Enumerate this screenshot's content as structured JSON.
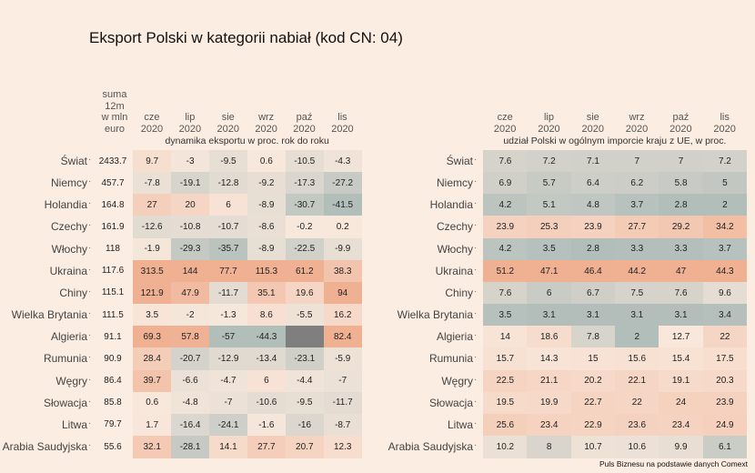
{
  "title": "Eksport Polski w kategorii nabiał (kod CN: 04)",
  "footer": "Puls Biznesu na podstawie danych Comext",
  "left": {
    "total_header": [
      "suma",
      "12m",
      "w mln",
      "euro"
    ],
    "columns": [
      [
        "cze",
        "2020"
      ],
      [
        "lip",
        "2020"
      ],
      [
        "sie",
        "2020"
      ],
      [
        "wrz",
        "2020"
      ],
      [
        "paź",
        "2020"
      ],
      [
        "lis",
        "2020"
      ]
    ],
    "subtitle": "dynamika eksportu w proc. rok do roku",
    "rows": [
      {
        "name": "Świat",
        "total": 2433.7,
        "values": [
          9.7,
          -3,
          -9.5,
          0.6,
          -10.5,
          -4.3
        ]
      },
      {
        "name": "Niemcy",
        "total": 457.7,
        "values": [
          -7.8,
          -19.1,
          -12.8,
          -9.2,
          -17.3,
          -27.2
        ]
      },
      {
        "name": "Holandia",
        "total": 164.8,
        "values": [
          27,
          20,
          6,
          -8.9,
          -30.7,
          -41.5
        ]
      },
      {
        "name": "Czechy",
        "total": 161.9,
        "values": [
          -12.6,
          -10.8,
          -10.7,
          -8.6,
          -0.2,
          0.2
        ]
      },
      {
        "name": "Włochy",
        "total": 118,
        "values": [
          -1.9,
          -29.3,
          -35.7,
          -8.9,
          -22.5,
          -9.9
        ]
      },
      {
        "name": "Ukraina",
        "total": 117.6,
        "values": [
          313.5,
          144,
          77.7,
          115.3,
          61.2,
          38.3
        ]
      },
      {
        "name": "Chiny",
        "total": 115.1,
        "values": [
          121.9,
          47.9,
          -11.7,
          35.1,
          19.6,
          94
        ]
      },
      {
        "name": "Wielka Brytania",
        "total": 111.5,
        "values": [
          3.5,
          -2,
          -1.3,
          8.6,
          -5.5,
          16.2
        ]
      },
      {
        "name": "Algieria",
        "total": 91.1,
        "values": [
          69.3,
          57.8,
          -57,
          -44.3,
          null,
          82.4
        ]
      },
      {
        "name": "Rumunia",
        "total": 90.9,
        "values": [
          28.4,
          -20.7,
          -12.9,
          -13.4,
          -23.1,
          -5.9
        ]
      },
      {
        "name": "Węgry",
        "total": 86.4,
        "values": [
          39.7,
          -6.6,
          -4.7,
          6,
          -4.4,
          -7
        ]
      },
      {
        "name": "Słowacja",
        "total": 85.8,
        "values": [
          0.6,
          -4.8,
          -7,
          -10.6,
          -9.5,
          -11.7
        ]
      },
      {
        "name": "Litwa",
        "total": 79.7,
        "values": [
          1.7,
          -16.4,
          -24.1,
          -1.6,
          -16,
          -8.7
        ]
      },
      {
        "name": "Arabia Saudyjska",
        "total": 55.6,
        "values": [
          32.1,
          -28.1,
          14.1,
          27.7,
          20.7,
          12.3
        ]
      }
    ]
  },
  "right": {
    "columns": [
      [
        "cze",
        "2020"
      ],
      [
        "lip",
        "2020"
      ],
      [
        "sie",
        "2020"
      ],
      [
        "wrz",
        "2020"
      ],
      [
        "paź",
        "2020"
      ],
      [
        "lis",
        "2020"
      ]
    ],
    "subtitle": "udział Polski w ogólnym imporcie kraju z UE, w proc.",
    "rows": [
      {
        "name": "Świat",
        "values": [
          7.6,
          7.2,
          7.1,
          7,
          7,
          7.2
        ]
      },
      {
        "name": "Niemcy",
        "values": [
          6.9,
          5.7,
          6.4,
          6.2,
          5.8,
          5
        ]
      },
      {
        "name": "Holandia",
        "values": [
          4.2,
          5.1,
          4.8,
          3.7,
          2.8,
          2
        ]
      },
      {
        "name": "Czechy",
        "values": [
          23.9,
          25.3,
          23.9,
          27.7,
          29.2,
          34.2
        ]
      },
      {
        "name": "Włochy",
        "values": [
          4.2,
          3.5,
          2.8,
          3.3,
          3.3,
          3.7
        ]
      },
      {
        "name": "Ukraina",
        "values": [
          51.2,
          47.1,
          46.4,
          44.2,
          47,
          44.3
        ]
      },
      {
        "name": "Chiny",
        "values": [
          7.6,
          6,
          6.7,
          7.5,
          7.6,
          9.6
        ]
      },
      {
        "name": "Wielka Brytania",
        "values": [
          3.5,
          3.1,
          3.1,
          3.1,
          3.1,
          3.4
        ]
      },
      {
        "name": "Algieria",
        "values": [
          14,
          18.6,
          7.8,
          2,
          12.7,
          22
        ]
      },
      {
        "name": "Rumunia",
        "values": [
          15.7,
          14.3,
          15,
          15.6,
          15.4,
          17.5
        ]
      },
      {
        "name": "Węgry",
        "values": [
          22.5,
          21.1,
          20.2,
          22.1,
          19.1,
          20.3
        ]
      },
      {
        "name": "Słowacja",
        "values": [
          19.5,
          19.9,
          22.7,
          22,
          24,
          23.9
        ]
      },
      {
        "name": "Litwa",
        "values": [
          25.6,
          23.4,
          22.9,
          23.6,
          23.4,
          24.9
        ]
      },
      {
        "name": "Arabia Saudyjska",
        "values": [
          10.2,
          8,
          10.7,
          10.6,
          9.9,
          6.1
        ]
      }
    ]
  }
}
